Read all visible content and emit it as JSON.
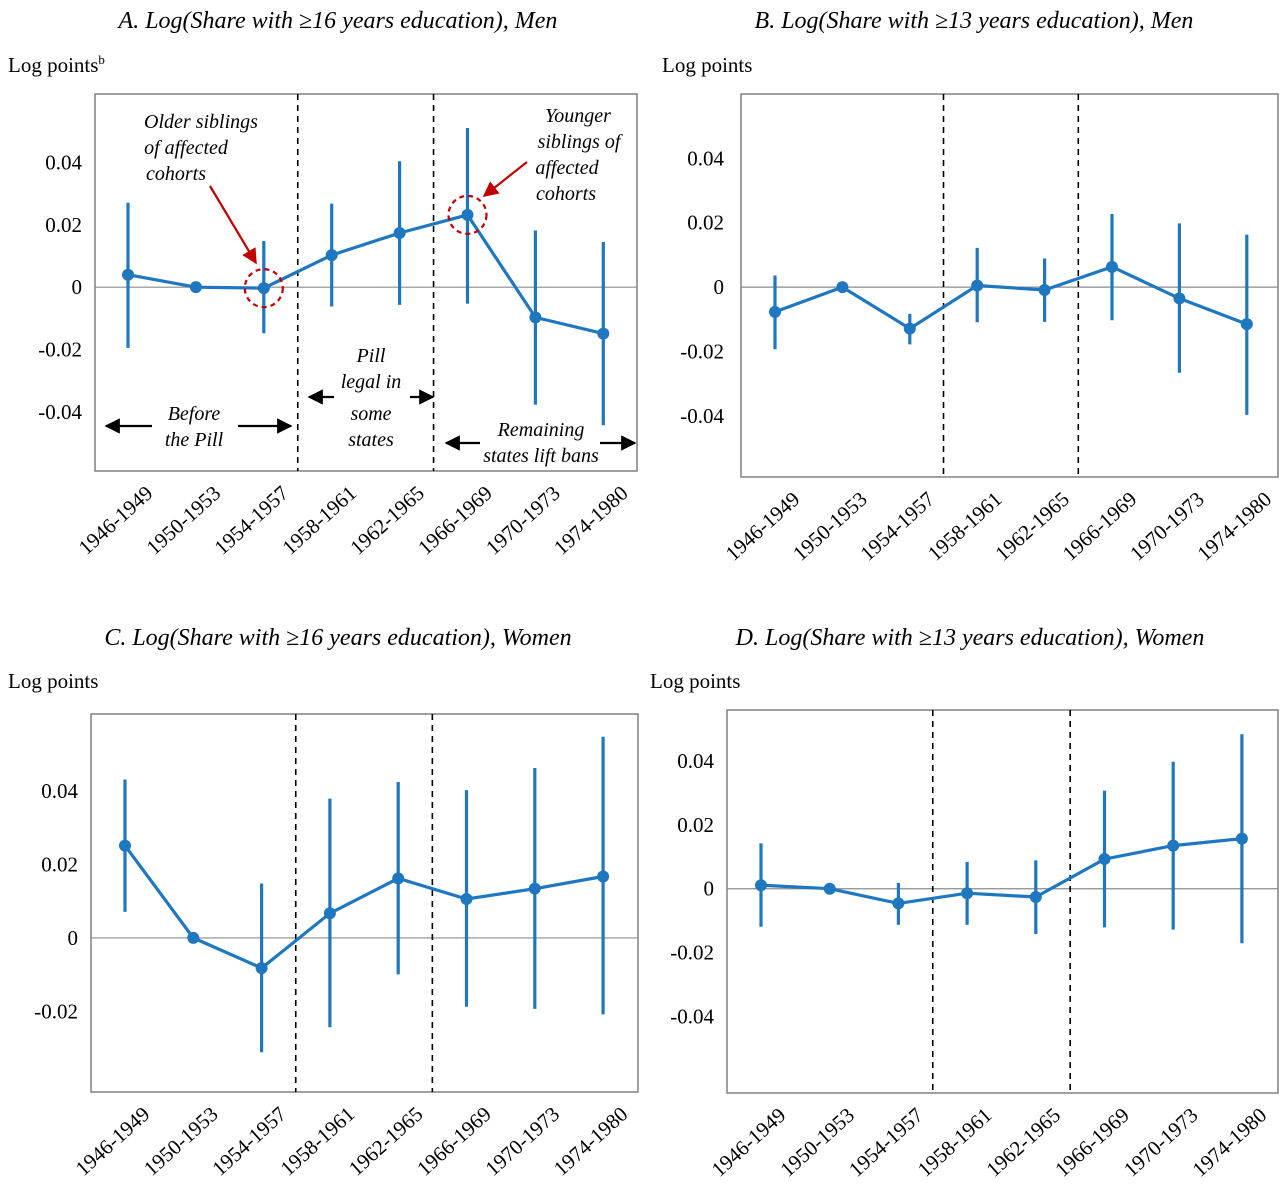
{
  "chart_data": [
    {
      "type": "line",
      "title": "A. Log(Share with ≥16 years education), Men",
      "ylabel": "Log points",
      "ylabel_sup": "b",
      "categories": [
        "1946-1949",
        "1950-1953",
        "1954-1957",
        "1958-1961",
        "1962-1965",
        "1966-1969",
        "1970-1973",
        "1974-1980"
      ],
      "values": [
        0.004,
        0.0,
        -0.0003,
        0.0103,
        0.0174,
        0.0232,
        -0.0097,
        -0.0149
      ],
      "ci_low": [
        -0.0195,
        0.0,
        -0.0148,
        -0.0062,
        -0.0057,
        -0.0053,
        -0.0377,
        -0.0443
      ],
      "ci_high": [
        0.0271,
        0.0,
        0.0148,
        0.0268,
        0.0404,
        0.0511,
        0.0182,
        0.0145
      ],
      "yticks": [
        0.04,
        0.02,
        0,
        -0.02,
        -0.04
      ],
      "ytick_labels": [
        "0.04",
        "0.02",
        "0",
        "-0.02",
        "-0.04"
      ],
      "ylim": [
        -0.059,
        0.062
      ],
      "vlines_after_index": [
        2,
        4
      ],
      "annotations": {
        "older": [
          "Older siblings",
          "of affected",
          "cohorts"
        ],
        "younger": [
          "Younger",
          "siblings of",
          "affected",
          "cohorts"
        ],
        "before": [
          "Before",
          "the Pill"
        ],
        "pill": [
          "Pill",
          "legal in",
          "some",
          "states"
        ],
        "remaining": [
          "Remaining",
          "states lift bans"
        ]
      }
    },
    {
      "type": "line",
      "title": "B. Log(Share with ≥13 years education), Men",
      "ylabel": "Log points",
      "categories": [
        "1946-1949",
        "1950-1953",
        "1954-1957",
        "1958-1961",
        "1962-1965",
        "1966-1969",
        "1970-1973",
        "1974-1980"
      ],
      "values": [
        -0.0077,
        0.0,
        -0.0129,
        0.0005,
        -0.0009,
        0.0063,
        -0.0035,
        -0.0115
      ],
      "ci_low": [
        -0.0193,
        0.0,
        -0.0178,
        -0.0109,
        -0.0108,
        -0.0103,
        -0.0266,
        -0.0397
      ],
      "ci_high": [
        0.0036,
        0.0,
        -0.0083,
        0.0122,
        0.0089,
        0.0227,
        0.0198,
        0.0163
      ],
      "yticks": [
        0.04,
        0.02,
        0,
        -0.02,
        -0.04
      ],
      "ytick_labels": [
        "0.04",
        "0.02",
        "0",
        "-0.02",
        "-0.04"
      ],
      "ylim": [
        -0.059,
        0.06
      ],
      "vlines_after_index": [
        2,
        4
      ]
    },
    {
      "type": "line",
      "title": "C. Log(Share with ≥16 years education), Women",
      "ylabel": "Log points",
      "categories": [
        "1946-1949",
        "1950-1953",
        "1954-1957",
        "1958-1961",
        "1962-1965",
        "1966-1969",
        "1970-1973",
        "1974-1980"
      ],
      "values": [
        0.0251,
        0.0,
        -0.0082,
        0.0067,
        0.0162,
        0.0106,
        0.0134,
        0.0167
      ],
      "ci_low": [
        0.0071,
        0.0,
        -0.0311,
        -0.0243,
        -0.0099,
        -0.0187,
        -0.0193,
        -0.0208
      ],
      "ci_high": [
        0.0431,
        0.0,
        0.0148,
        0.0379,
        0.0424,
        0.0402,
        0.0462,
        0.0547
      ],
      "yticks": [
        0.04,
        0.02,
        0,
        -0.02
      ],
      "ytick_labels": [
        "0.04",
        "0.02",
        "0",
        "-0.02"
      ],
      "ylim": [
        -0.0419,
        0.0609
      ],
      "vlines_after_index": [
        2,
        4
      ]
    },
    {
      "type": "line",
      "title": "D. Log(Share with ≥13 years education), Women",
      "ylabel": "Log points",
      "categories": [
        "1946-1949",
        "1950-1953",
        "1954-1957",
        "1958-1961",
        "1962-1965",
        "1966-1969",
        "1970-1973",
        "1974-1980"
      ],
      "values": [
        0.0011,
        0.0,
        -0.0046,
        -0.0014,
        -0.0026,
        0.0093,
        0.0135,
        0.0157
      ],
      "ci_low": [
        -0.0119,
        0.0,
        -0.0113,
        -0.0113,
        -0.0142,
        -0.0121,
        -0.0128,
        -0.0171
      ],
      "ci_high": [
        0.0142,
        0.0,
        0.0018,
        0.0084,
        0.0089,
        0.0307,
        0.0398,
        0.0484
      ],
      "yticks": [
        0.04,
        0.02,
        0,
        -0.02,
        -0.04
      ],
      "ytick_labels": [
        "0.04",
        "0.02",
        "0",
        "-0.02",
        "-0.04"
      ],
      "ylim": [
        -0.064,
        0.056
      ],
      "vlines_after_index": [
        2,
        4
      ]
    }
  ]
}
